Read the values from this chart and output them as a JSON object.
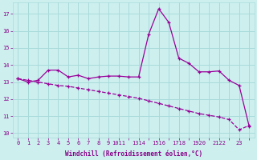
{
  "xlabel": "Windchill (Refroidissement éolien,°C)",
  "background_color": "#cdf0ef",
  "grid_color": "#a8dada",
  "line_color": "#990099",
  "x_all": [
    0,
    1,
    2,
    3,
    4,
    5,
    6,
    7,
    8,
    9,
    10,
    11,
    12,
    13,
    14,
    15,
    16,
    17,
    18,
    19,
    20,
    21,
    22,
    23
  ],
  "temp": [
    13.2,
    13.0,
    13.1,
    13.7,
    13.7,
    13.3,
    13.4,
    13.2,
    13.3,
    13.35,
    13.35,
    13.3,
    13.3,
    15.8,
    17.3,
    16.5,
    14.4,
    14.1,
    13.6,
    13.6,
    13.65,
    13.1,
    12.8,
    10.4
  ],
  "diag": [
    13.2,
    13.1,
    13.0,
    12.9,
    12.8,
    12.75,
    12.65,
    12.55,
    12.45,
    12.35,
    12.25,
    12.15,
    12.05,
    11.9,
    11.75,
    11.6,
    11.45,
    11.3,
    11.15,
    11.05,
    10.95,
    10.8,
    10.2,
    10.45
  ],
  "xlim": [
    -0.5,
    23.5
  ],
  "ylim": [
    9.75,
    17.65
  ],
  "yticks": [
    10,
    11,
    12,
    13,
    14,
    15,
    16,
    17
  ],
  "xticks": [
    0,
    1,
    2,
    3,
    4,
    5,
    6,
    7,
    8,
    9,
    10,
    11,
    12,
    13,
    14,
    15,
    16,
    17,
    18,
    19,
    20,
    21,
    22,
    23
  ],
  "xtick_labels": [
    "0",
    "1",
    "2",
    "3",
    "4",
    "5",
    "6",
    "7",
    "8",
    "9",
    "1011",
    "",
    "1314",
    "",
    "1516",
    "",
    "1718",
    "",
    "1920",
    "",
    "2122",
    "",
    "23",
    ""
  ],
  "font_color": "#880088",
  "ylabel_fontsize": 5.5,
  "tick_fontsize": 5.0
}
